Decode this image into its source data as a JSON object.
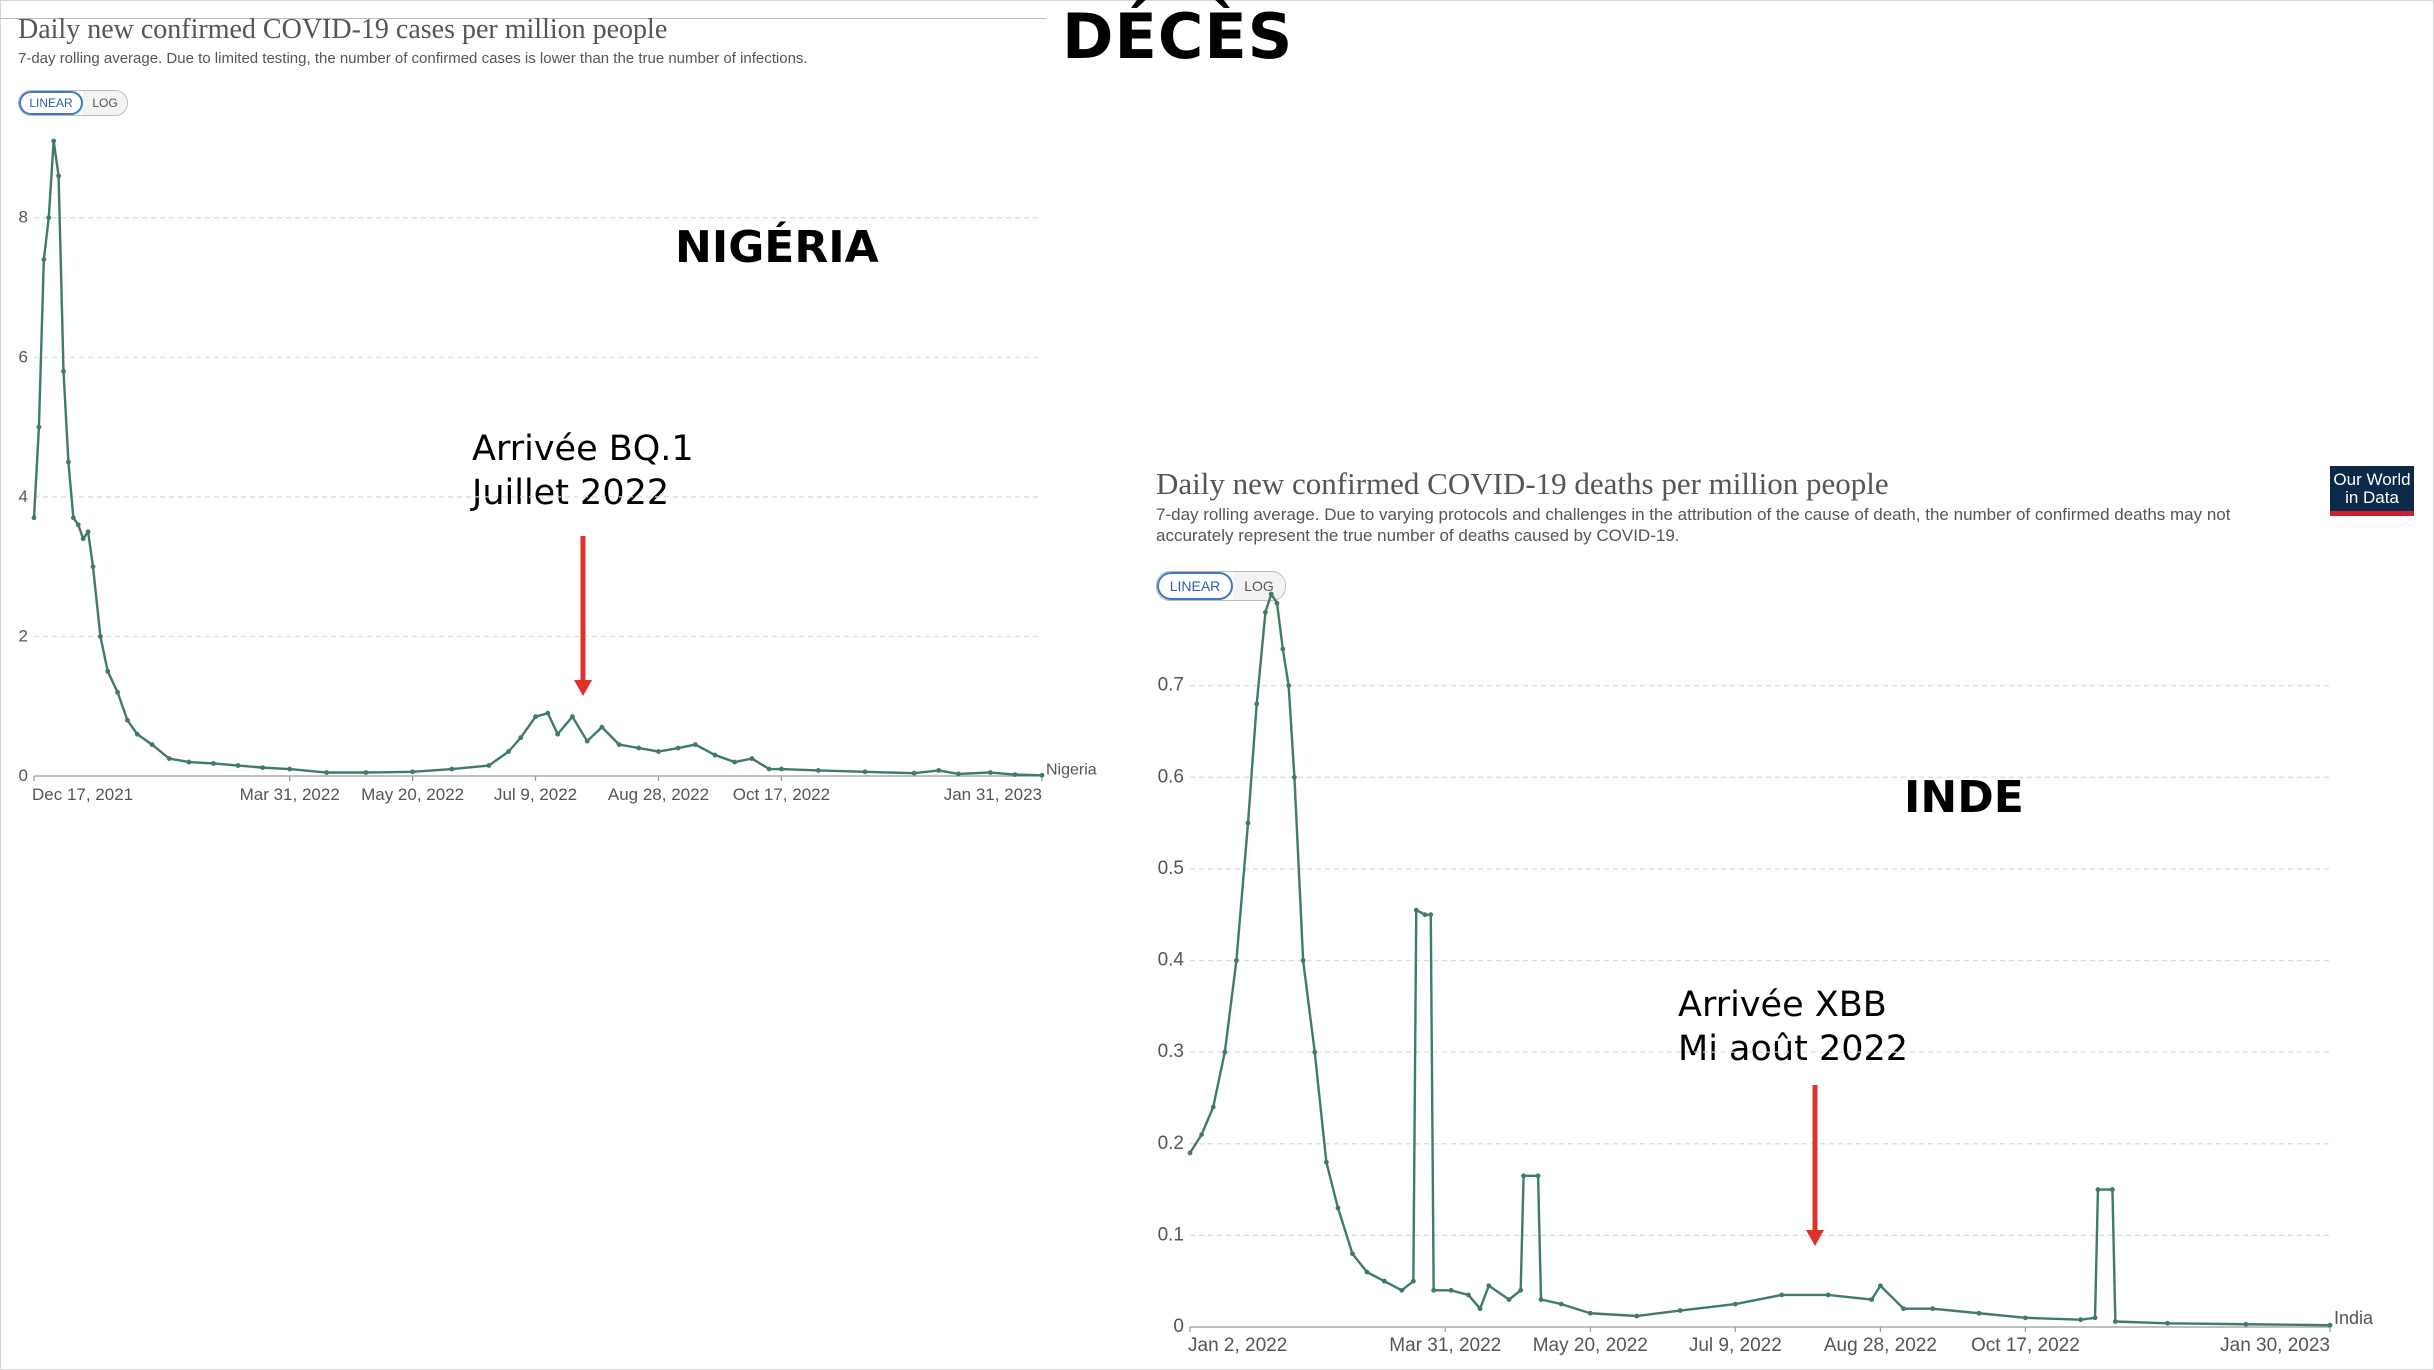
{
  "page": {
    "heading": "DÉCÈS"
  },
  "panels": [
    {
      "title": "Daily new confirmed COVID-19 cases per million people",
      "subtitle": "7-day rolling average. Due to limited testing, the number of confirmed cases is lower than the true number of infections.",
      "toggle": {
        "linear": "LINEAR",
        "log": "LOG"
      },
      "country_label": "NIGÉRIA",
      "annotation": {
        "line1": "Arrivée BQ.1",
        "line2": "Juillet 2022"
      }
    },
    {
      "title": "Daily new confirmed COVID-19 deaths per million people",
      "subtitle_line1": "7-day rolling average. Due to varying protocols and challenges in the attribution of the cause of death, the number of confirmed deaths may not",
      "subtitle_line2": "accurately represent the true number of deaths caused by COVID-19.",
      "toggle": {
        "linear": "LINEAR",
        "log": "LOG"
      },
      "country_label": "INDE",
      "annotation": {
        "line1": "Arrivée XBB",
        "line2": "Mi août 2022"
      },
      "logo": {
        "line1": "Our World",
        "line2": "in Data"
      }
    }
  ],
  "chart_data": [
    {
      "type": "line",
      "title": "Daily new confirmed COVID-19 cases per million people",
      "subtitle": "7-day rolling average. Due to limited testing, the number of confirmed cases is lower than the true number of infections.",
      "xlabel": "",
      "ylabel": "",
      "x_ticks": [
        "Dec 17, 2021",
        "Mar 31, 2022",
        "May 20, 2022",
        "Jul 9, 2022",
        "Aug 28, 2022",
        "Oct 17, 2022",
        "Jan 31, 2023"
      ],
      "y_ticks": [
        "0",
        "2",
        "4",
        "6",
        "8"
      ],
      "ylim": [
        0,
        9.2
      ],
      "grid": true,
      "color": "#3f7d5f",
      "series": [
        {
          "name": "Nigeria",
          "x": [
            "2021-12-17",
            "2021-12-19",
            "2021-12-21",
            "2021-12-23",
            "2021-12-25",
            "2021-12-27",
            "2021-12-29",
            "2021-12-31",
            "2022-01-02",
            "2022-01-04",
            "2022-01-06",
            "2022-01-08",
            "2022-01-10",
            "2022-01-13",
            "2022-01-16",
            "2022-01-20",
            "2022-01-24",
            "2022-01-28",
            "2022-02-03",
            "2022-02-10",
            "2022-02-18",
            "2022-02-28",
            "2022-03-10",
            "2022-03-20",
            "2022-03-31",
            "2022-04-15",
            "2022-05-01",
            "2022-05-20",
            "2022-06-05",
            "2022-06-20",
            "2022-06-28",
            "2022-07-03",
            "2022-07-09",
            "2022-07-14",
            "2022-07-18",
            "2022-07-24",
            "2022-07-30",
            "2022-08-05",
            "2022-08-12",
            "2022-08-20",
            "2022-08-28",
            "2022-09-05",
            "2022-09-12",
            "2022-09-20",
            "2022-09-28",
            "2022-10-05",
            "2022-10-12",
            "2022-10-17",
            "2022-11-01",
            "2022-11-20",
            "2022-12-10",
            "2022-12-20",
            "2022-12-28",
            "2023-01-10",
            "2023-01-20",
            "2023-01-31"
          ],
          "y": [
            3.7,
            5.0,
            7.4,
            8.0,
            9.1,
            8.6,
            5.8,
            4.5,
            3.7,
            3.6,
            3.4,
            3.5,
            3.0,
            2.0,
            1.5,
            1.2,
            0.8,
            0.6,
            0.45,
            0.25,
            0.2,
            0.18,
            0.15,
            0.12,
            0.1,
            0.05,
            0.05,
            0.06,
            0.1,
            0.15,
            0.35,
            0.55,
            0.85,
            0.9,
            0.6,
            0.85,
            0.5,
            0.7,
            0.45,
            0.4,
            0.35,
            0.4,
            0.45,
            0.3,
            0.2,
            0.25,
            0.1,
            0.1,
            0.08,
            0.06,
            0.04,
            0.08,
            0.03,
            0.05,
            0.02,
            0.01
          ]
        }
      ],
      "end_label": "Nigeria",
      "annotation": {
        "text": "Arrivée BQ.1 Juillet 2022",
        "x": "2022-07-30",
        "y": 1.1
      }
    },
    {
      "type": "line",
      "title": "Daily new confirmed COVID-19 deaths per million people",
      "subtitle": "7-day rolling average. Due to varying protocols and challenges in the attribution of the cause of death, the number of confirmed deaths may not accurately represent the true number of deaths caused by COVID-19.",
      "xlabel": "",
      "ylabel": "",
      "x_ticks": [
        "Jan 2, 2022",
        "Mar 31, 2022",
        "May 20, 2022",
        "Jul 9, 2022",
        "Aug 28, 2022",
        "Oct 17, 2022",
        "Jan 30, 2023"
      ],
      "y_ticks": [
        "0",
        "0.1",
        "0.2",
        "0.3",
        "0.4",
        "0.5",
        "0.6",
        "0.7"
      ],
      "ylim": [
        0,
        0.8
      ],
      "grid": true,
      "color": "#3f7d5f",
      "series": [
        {
          "name": "India",
          "x": [
            "2022-01-02",
            "2022-01-06",
            "2022-01-10",
            "2022-01-14",
            "2022-01-18",
            "2022-01-22",
            "2022-01-25",
            "2022-01-28",
            "2022-01-30",
            "2022-02-01",
            "2022-02-03",
            "2022-02-05",
            "2022-02-07",
            "2022-02-10",
            "2022-02-14",
            "2022-02-18",
            "2022-02-22",
            "2022-02-27",
            "2022-03-04",
            "2022-03-10",
            "2022-03-16",
            "2022-03-20",
            "2022-03-21",
            "2022-03-24",
            "2022-03-26",
            "2022-03-27",
            "2022-04-02",
            "2022-04-08",
            "2022-04-12",
            "2022-04-15",
            "2022-04-22",
            "2022-04-26",
            "2022-04-27",
            "2022-05-02",
            "2022-05-03",
            "2022-05-10",
            "2022-05-20",
            "2022-06-05",
            "2022-06-20",
            "2022-07-09",
            "2022-07-25",
            "2022-08-10",
            "2022-08-25",
            "2022-08-28",
            "2022-09-05",
            "2022-09-15",
            "2022-10-01",
            "2022-10-17",
            "2022-11-05",
            "2022-11-10",
            "2022-11-11",
            "2022-11-16",
            "2022-11-17",
            "2022-12-05",
            "2023-01-01",
            "2023-01-30"
          ],
          "y": [
            0.19,
            0.21,
            0.24,
            0.3,
            0.4,
            0.55,
            0.68,
            0.78,
            0.8,
            0.79,
            0.74,
            0.7,
            0.6,
            0.4,
            0.3,
            0.18,
            0.13,
            0.08,
            0.06,
            0.05,
            0.04,
            0.05,
            0.455,
            0.45,
            0.45,
            0.04,
            0.04,
            0.035,
            0.02,
            0.045,
            0.03,
            0.04,
            0.165,
            0.165,
            0.03,
            0.025,
            0.015,
            0.012,
            0.018,
            0.025,
            0.035,
            0.035,
            0.03,
            0.045,
            0.02,
            0.02,
            0.015,
            0.01,
            0.008,
            0.01,
            0.15,
            0.15,
            0.006,
            0.004,
            0.003,
            0.002
          ]
        }
      ],
      "end_label": "India",
      "annotation": {
        "text": "Arrivée XBB Mi août 2022",
        "x": "2022-08-12",
        "y": 0.1
      }
    }
  ]
}
